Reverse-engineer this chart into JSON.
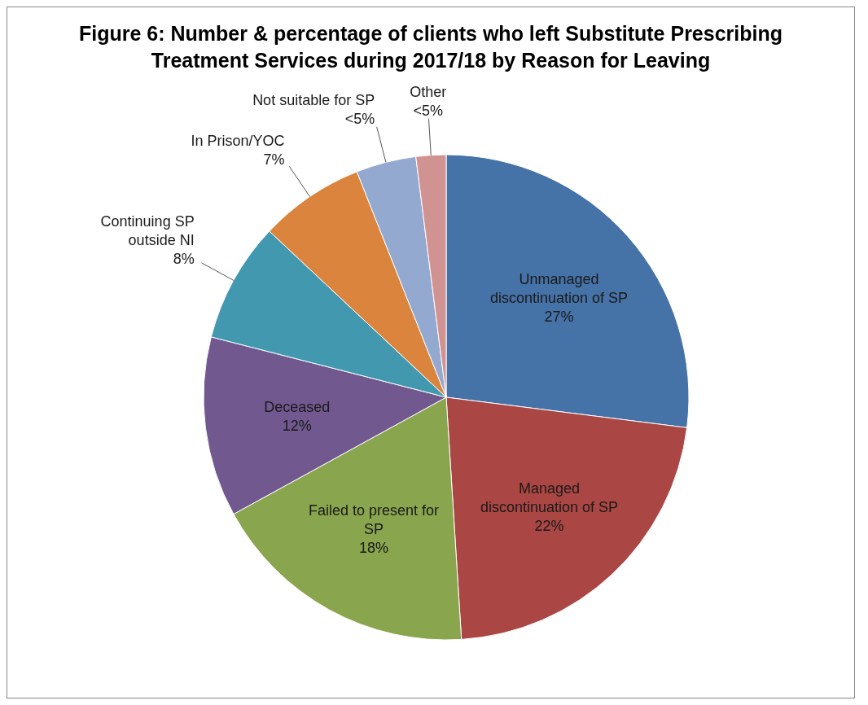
{
  "chart_data": {
    "type": "pie",
    "title": "Figure 6: Number & percentage of clients who left Substitute Prescribing Treatment Services during 2017/18 by Reason for Leaving",
    "categories": [
      "Unmanaged discontinuation of SP",
      "Managed discontinuation of SP",
      "Failed to present for SP",
      "Deceased",
      "Continuing SP outside NI",
      "In Prison/YOC",
      "Not suitable for SP",
      "Other"
    ],
    "values": [
      27,
      22,
      18,
      12,
      8,
      7,
      4,
      2
    ],
    "value_labels": [
      "27%",
      "22%",
      "18%",
      "12%",
      "8%",
      "7%",
      "<5%",
      "<5%"
    ],
    "colors": [
      "#4572a7",
      "#aa4643",
      "#89a54e",
      "#71588f",
      "#4198af",
      "#db843d",
      "#93a9cf",
      "#d19392"
    ],
    "legend": false
  }
}
